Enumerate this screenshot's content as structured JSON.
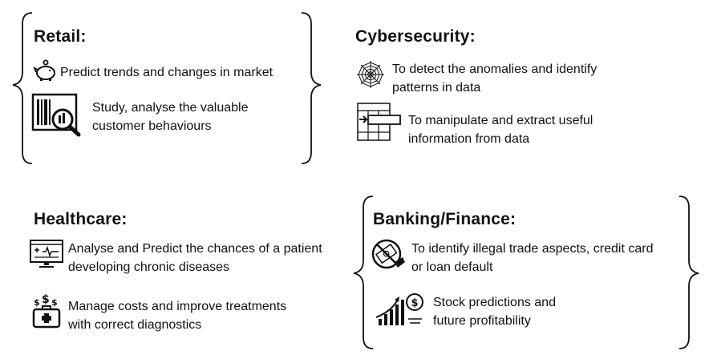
{
  "retail": {
    "title": "Retail:",
    "items": [
      {
        "icon": "piggy-bank-icon",
        "lines": [
          "Predict trends and changes in market"
        ]
      },
      {
        "icon": "barcode-magnifier-icon",
        "lines": [
          "Study, analyse the valuable",
          "customer behaviours"
        ]
      }
    ]
  },
  "cybersecurity": {
    "title": "Cybersecurity:",
    "items": [
      {
        "icon": "spider-web-icon",
        "lines": [
          "To detect the anomalies and identify",
          "patterns in data"
        ]
      },
      {
        "icon": "data-table-arrow-icon",
        "lines": [
          "To manipulate and extract useful",
          "information from data"
        ]
      }
    ]
  },
  "healthcare": {
    "title": "Healthcare:",
    "items": [
      {
        "icon": "medical-monitor-icon",
        "lines": [
          "Analyse and Predict the chances of a patient",
          "developing chronic diseases"
        ]
      },
      {
        "icon": "money-medkit-icon",
        "lines": [
          "Manage costs and improve treatments",
          "with correct diagnostics"
        ]
      }
    ]
  },
  "banking": {
    "title": "Banking/Finance:",
    "items": [
      {
        "icon": "no-money-icon",
        "lines": [
          "To identify illegal trade aspects, credit card",
          "or loan default"
        ]
      },
      {
        "icon": "stock-growth-icon",
        "lines": [
          "Stock predictions and",
          "future profitability"
        ]
      }
    ]
  }
}
